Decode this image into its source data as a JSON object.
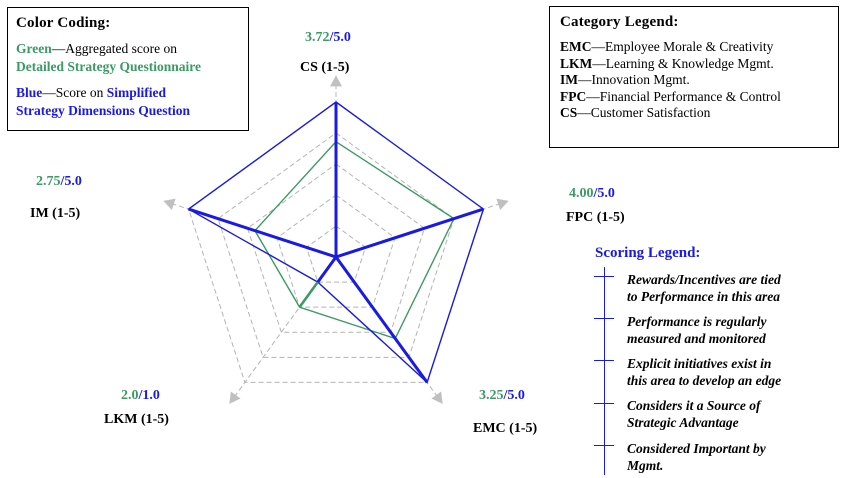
{
  "color_coding": {
    "title": "Color Coding:",
    "green_word": "Green",
    "green_text": "—Aggregated score on",
    "green_bold": "Detailed Strategy Questionnaire",
    "blue_word": "Blue",
    "blue_text": "—Score on",
    "blue_bold_1": "Simplified",
    "blue_bold_2": "Strategy Dimensions Question"
  },
  "category_legend": {
    "title": "Category Legend:",
    "items": [
      {
        "abbr": "EMC",
        "desc": "—Employee Morale & Creativity"
      },
      {
        "abbr": "LKM",
        "desc": "—Learning & Knowledge Mgmt."
      },
      {
        "abbr": "IM",
        "desc": "—Innovation Mgmt."
      },
      {
        "abbr": "FPC",
        "desc": "—Financial Performance & Control"
      },
      {
        "abbr": "CS",
        "desc": "—Customer Satisfaction"
      }
    ]
  },
  "scoring_legend": {
    "title": "Scoring Legend:",
    "items": [
      {
        "line1": "Rewards/Incentives are tied",
        "line2": "to Performance in this area"
      },
      {
        "line1": "Performance is regularly",
        "line2": "measured and monitored"
      },
      {
        "line1": "Explicit initiatives exist in",
        "line2": "this area to develop an edge"
      },
      {
        "line1": "Considers it a Source of",
        "line2": "Strategic Advantage"
      },
      {
        "line1": "Considered Important by",
        "line2": "Mgmt."
      }
    ]
  },
  "colors": {
    "green": "#3c9a64",
    "blue": "#1a1ae6",
    "grid": "#b4b4b4"
  },
  "chart_data": {
    "type": "radar",
    "scale": [
      0,
      5
    ],
    "rings": 5,
    "axes": [
      {
        "label": "CS (1-5)",
        "green_label": "3.72",
        "blue_label": "5.0",
        "sep": "/"
      },
      {
        "label": "FPC (1-5)",
        "green_label": "4.00",
        "blue_label": "5.0",
        "sep": "/"
      },
      {
        "label": "EMC (1-5)",
        "green_label": "3.25",
        "blue_label": "5.0",
        "sep": "/"
      },
      {
        "label": "LKM (1-5)",
        "green_label": "2.0",
        "blue_label": "1.0",
        "sep": "/"
      },
      {
        "label": "IM (1-5)",
        "green_label": "2.75",
        "blue_label": "5.0",
        "sep": "/"
      }
    ],
    "series": [
      {
        "color": "green",
        "values": [
          3.72,
          4.0,
          3.25,
          2.0,
          2.75
        ]
      },
      {
        "color": "blue",
        "values": [
          5.0,
          5.0,
          5.0,
          1.0,
          5.0
        ]
      }
    ]
  }
}
